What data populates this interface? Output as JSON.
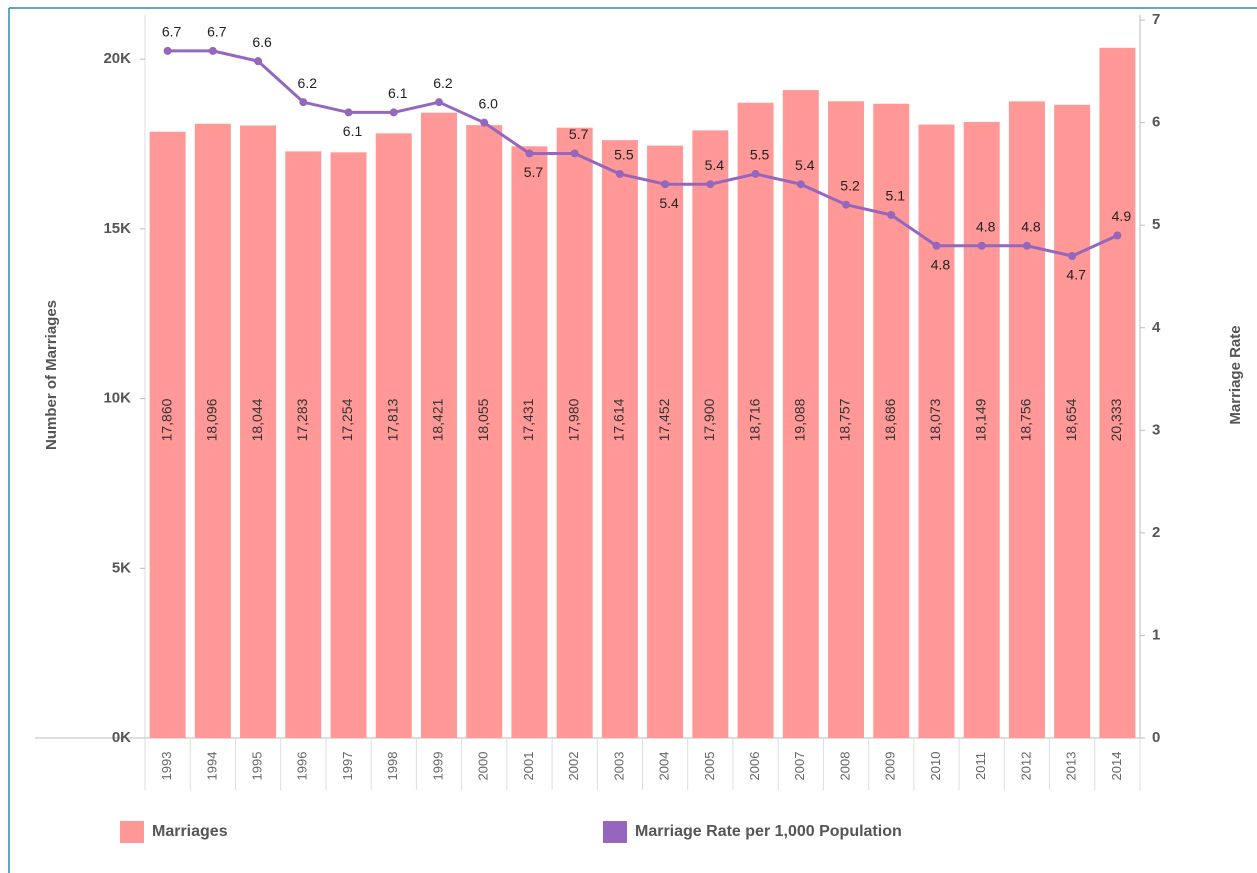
{
  "chart_data": {
    "type": "bar-line",
    "categories": [
      "1993",
      "1994",
      "1995",
      "1996",
      "1997",
      "1998",
      "1999",
      "2000",
      "2001",
      "2002",
      "2003",
      "2004",
      "2005",
      "2006",
      "2007",
      "2008",
      "2009",
      "2010",
      "2011",
      "2012",
      "2013",
      "2014"
    ],
    "series": [
      {
        "name": "Marriages",
        "type": "bar",
        "color": "#ff9896",
        "axis": "y",
        "values": [
          17860,
          18096,
          18044,
          17283,
          17254,
          17813,
          18421,
          18055,
          17431,
          17980,
          17614,
          17452,
          17900,
          18716,
          19088,
          18757,
          18686,
          18073,
          18149,
          18756,
          18654,
          20333
        ],
        "value_labels": [
          "17,860",
          "18,096",
          "18,044",
          "17,283",
          "17,254",
          "17,813",
          "18,421",
          "18,055",
          "17,431",
          "17,980",
          "17,614",
          "17,452",
          "17,900",
          "18,716",
          "19,088",
          "18,757",
          "18,686",
          "18,073",
          "18,149",
          "18,756",
          "18,654",
          "20,333"
        ]
      },
      {
        "name": "Marriage Rate per 1,000 Population",
        "type": "line",
        "color": "#9467bd",
        "axis": "y2",
        "values": [
          6.7,
          6.7,
          6.6,
          6.2,
          6.1,
          6.1,
          6.2,
          6.0,
          5.7,
          5.7,
          5.5,
          5.4,
          5.4,
          5.5,
          5.4,
          5.2,
          5.1,
          4.8,
          4.8,
          4.8,
          4.7,
          4.9
        ],
        "value_labels": [
          "6.7",
          "6.7",
          "6.6",
          "6.2",
          "6.1",
          "6.1",
          "6.2",
          "6.0",
          "5.7",
          "5.7",
          "5.5",
          "5.4",
          "5.4",
          "5.5",
          "5.4",
          "5.2",
          "5.1",
          "4.8",
          "4.8",
          "4.8",
          "4.7",
          "4.9"
        ]
      }
    ],
    "ylabel": "Number of Marriages",
    "y2label": "Marriage Rate",
    "ylim": [
      0,
      21300
    ],
    "yticks": [
      {
        "value": 0,
        "label": "0K"
      },
      {
        "value": 5000,
        "label": "5K"
      },
      {
        "value": 10000,
        "label": "10K"
      },
      {
        "value": 15000,
        "label": "15K"
      },
      {
        "value": 20000,
        "label": "20K"
      }
    ],
    "y2lim": [
      0,
      7.05
    ],
    "y2ticks": [
      0,
      1,
      2,
      3,
      4,
      5,
      6,
      7
    ],
    "legend": "bottom"
  }
}
